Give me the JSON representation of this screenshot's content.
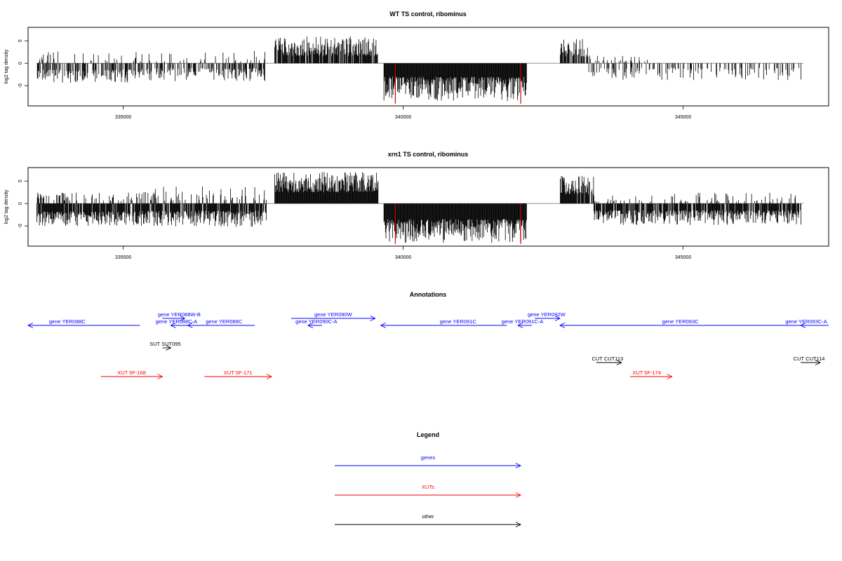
{
  "chart_data": [
    {
      "type": "bar",
      "title": "WT TS control, ribominus",
      "ylabel": "log2 tag density",
      "xlim": [
        333300,
        347600
      ],
      "ylim": [
        -9.5,
        8
      ],
      "x_ticks": [
        335000,
        340000,
        345000
      ],
      "y_ticks": [
        -5,
        0,
        5
      ],
      "bar_color": "#000000",
      "highlight_color": "#cc0000",
      "highlights": [
        {
          "x": 339860,
          "y": -9.0
        },
        {
          "x": 342100,
          "y": -9.0
        }
      ],
      "segments": [
        {
          "x0": 333450,
          "x1": 335300,
          "sign": -1,
          "base": 1.4,
          "peak": 4.4,
          "density": 0.55
        },
        {
          "x0": 333450,
          "x1": 335300,
          "sign": 1,
          "base": 0.4,
          "peak": 2.8,
          "density": 0.14
        },
        {
          "x0": 335300,
          "x1": 337550,
          "sign": -1,
          "base": 1.1,
          "peak": 4.0,
          "density": 0.5
        },
        {
          "x0": 335300,
          "x1": 337550,
          "sign": 1,
          "base": 0.4,
          "peak": 3.2,
          "density": 0.12
        },
        {
          "x0": 337700,
          "x1": 339550,
          "sign": 1,
          "base": 1.7,
          "peak": 6.0,
          "density": 0.8
        },
        {
          "x0": 339650,
          "x1": 342200,
          "sign": -1,
          "base": 3.0,
          "peak": 8.5,
          "density": 1.0
        },
        {
          "x0": 342800,
          "x1": 343300,
          "sign": 1,
          "base": 1.5,
          "peak": 5.5,
          "density": 0.75
        },
        {
          "x0": 343300,
          "x1": 347100,
          "sign": -1,
          "base": 1.0,
          "peak": 3.8,
          "density": 0.3
        },
        {
          "x0": 343300,
          "x1": 344400,
          "sign": 1,
          "base": 0.4,
          "peak": 1.8,
          "density": 0.15
        }
      ]
    },
    {
      "type": "bar",
      "title": "xrn1 TS control, ribominus",
      "ylabel": "log2 tag density",
      "xlim": [
        333300,
        347600
      ],
      "ylim": [
        -9.5,
        8
      ],
      "x_ticks": [
        335000,
        340000,
        345000
      ],
      "y_ticks": [
        -5,
        0,
        5
      ],
      "bar_color": "#000000",
      "highlight_color": "#cc0000",
      "highlights": [
        {
          "x": 339860,
          "y": -9.0
        },
        {
          "x": 342100,
          "y": -9.0
        }
      ],
      "segments": [
        {
          "x0": 333450,
          "x1": 335300,
          "sign": -1,
          "base": 1.8,
          "peak": 5.0,
          "density": 0.9
        },
        {
          "x0": 333450,
          "x1": 335300,
          "sign": 1,
          "base": 0.5,
          "peak": 2.6,
          "density": 0.25
        },
        {
          "x0": 335300,
          "x1": 337550,
          "sign": -1,
          "base": 1.6,
          "peak": 5.2,
          "density": 0.85
        },
        {
          "x0": 335300,
          "x1": 337550,
          "sign": 1,
          "base": 0.6,
          "peak": 3.8,
          "density": 0.3
        },
        {
          "x0": 337700,
          "x1": 339550,
          "sign": 1,
          "base": 2.5,
          "peak": 7.2,
          "density": 1.0
        },
        {
          "x0": 339650,
          "x1": 342200,
          "sign": -1,
          "base": 3.5,
          "peak": 8.8,
          "density": 1.0
        },
        {
          "x0": 342800,
          "x1": 343400,
          "sign": 1,
          "base": 2.0,
          "peak": 6.5,
          "density": 0.95
        },
        {
          "x0": 343400,
          "x1": 347100,
          "sign": -1,
          "base": 1.5,
          "peak": 4.8,
          "density": 0.85
        },
        {
          "x0": 343400,
          "x1": 347100,
          "sign": 1,
          "base": 0.4,
          "peak": 2.5,
          "density": 0.2
        }
      ]
    }
  ],
  "annotations": {
    "title": "Annotations",
    "features": [
      {
        "label": "gene YER088C",
        "x0": 333300,
        "x1": 335300,
        "track": 1,
        "strand": "-",
        "type": "gene",
        "label_x": 334000
      },
      {
        "label": "gene YER088W-B",
        "x0": 335700,
        "x1": 336100,
        "track": 0,
        "strand": "+",
        "type": "gene",
        "label_x": 336000
      },
      {
        "label": "gene YER088C-A",
        "x0": 335850,
        "x1": 336350,
        "track": 1,
        "strand": "-",
        "type": "gene",
        "label_x": 335950
      },
      {
        "label": "gene YER089C",
        "x0": 336150,
        "x1": 337350,
        "track": 1,
        "strand": "-",
        "type": "gene",
        "label_x": 336800
      },
      {
        "label": "gene YER090W",
        "x0": 338000,
        "x1": 339500,
        "track": 0,
        "strand": "+",
        "type": "gene",
        "label_x": 338750
      },
      {
        "label": "gene YER090C-A",
        "x0": 338300,
        "x1": 338550,
        "track": 1,
        "strand": "-",
        "type": "gene",
        "label_x": 338450
      },
      {
        "label": "gene YER091C",
        "x0": 339600,
        "x1": 341850,
        "track": 1,
        "strand": "-",
        "type": "gene",
        "label_x": 340980
      },
      {
        "label": "gene YER091C-A",
        "x0": 342050,
        "x1": 342300,
        "track": 1,
        "strand": "-",
        "type": "gene",
        "label_x": 342130
      },
      {
        "label": "gene YER092W",
        "x0": 342350,
        "x1": 342800,
        "track": 0,
        "strand": "+",
        "type": "gene",
        "label_x": 342560
      },
      {
        "label": "gene YER093C",
        "x0": 342800,
        "x1": 347100,
        "track": 1,
        "strand": "-",
        "type": "gene",
        "label_x": 344950
      },
      {
        "label": "gene YER093C-A",
        "x0": 347100,
        "x1": 347600,
        "track": 1,
        "strand": "-",
        "type": "gene",
        "label_x": 347200
      },
      {
        "label": "SUT SUT095",
        "x0": 335700,
        "x1": 335850,
        "track": 2,
        "strand": "+",
        "type": "other",
        "label_x": 335750
      },
      {
        "label": "CUT CUT113",
        "x0": 343450,
        "x1": 343900,
        "track": 3,
        "strand": "+",
        "type": "other",
        "label_x": 343650
      },
      {
        "label": "CUT CUT114",
        "x0": 347100,
        "x1": 347450,
        "track": 3,
        "strand": "+",
        "type": "other",
        "label_x": 347250
      },
      {
        "label": "XUT 5F-168",
        "x0": 334600,
        "x1": 335700,
        "track": 4,
        "strand": "+",
        "type": "xut",
        "label_x": 335150
      },
      {
        "label": "XUT 5F-171",
        "x0": 336450,
        "x1": 337650,
        "track": 4,
        "strand": "+",
        "type": "xut",
        "label_x": 337050
      },
      {
        "label": "XUT 5F-174",
        "x0": 344050,
        "x1": 344800,
        "track": 4,
        "strand": "+",
        "type": "xut",
        "label_x": 344350
      }
    ]
  },
  "legend": {
    "title": "Legend",
    "items": [
      {
        "label": "genes",
        "type": "gene"
      },
      {
        "label": "XUTs",
        "type": "xut"
      },
      {
        "label": "other",
        "type": "other"
      }
    ]
  },
  "colors": {
    "gene": "#0000ff",
    "xut": "#ff0000",
    "other": "#000000"
  }
}
